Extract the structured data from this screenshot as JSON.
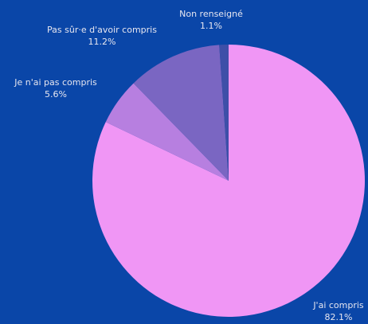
{
  "chart_data": {
    "type": "pie",
    "categories": [
      "J'ai compris",
      "Je n'ai pas compris",
      "Pas sûr·e d'avoir compris",
      "Non renseigné"
    ],
    "values": [
      82.1,
      5.6,
      11.2,
      1.1
    ],
    "value_labels": [
      "82.1%",
      "5.6%",
      "11.2%",
      "1.1%"
    ],
    "colors": [
      "#f096f5",
      "#b77fe0",
      "#7a66c2",
      "#3e4fa8"
    ]
  }
}
